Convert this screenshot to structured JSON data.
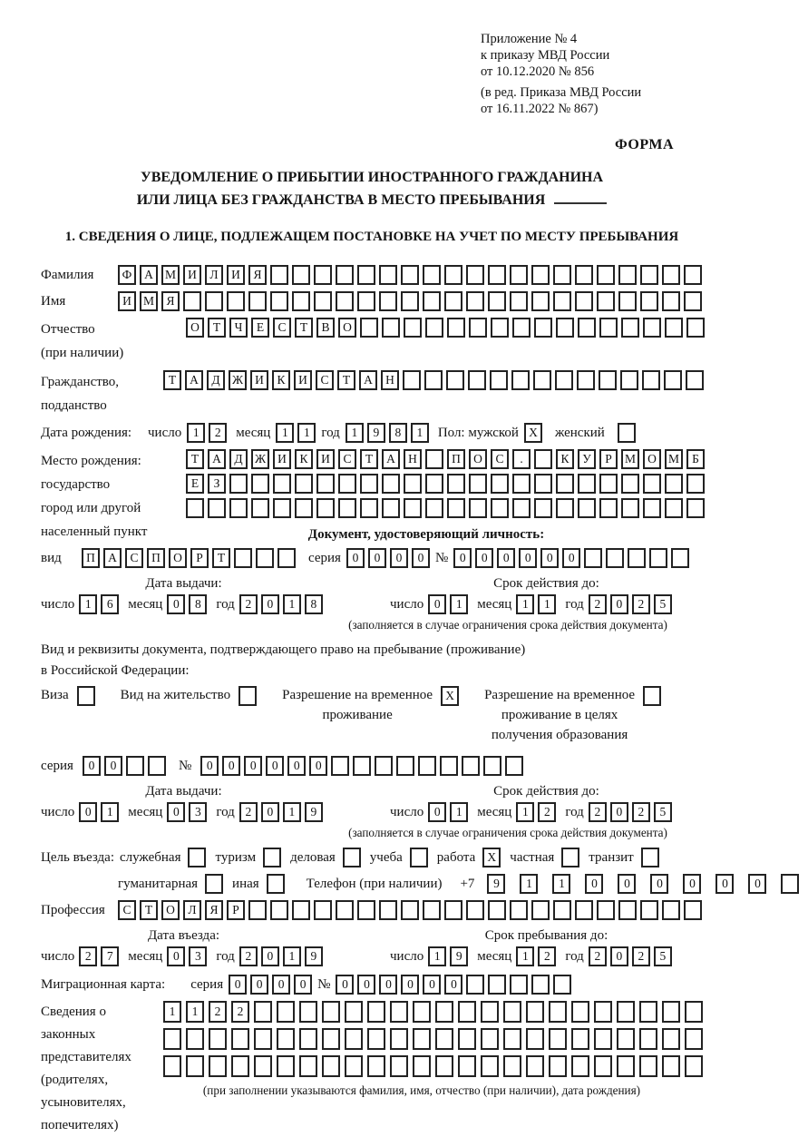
{
  "header": {
    "line1": "Приложение № 4",
    "line2": "к приказу МВД России",
    "line3": "от 10.12.2020 № 856",
    "line4": "(в ред. Приказа МВД России",
    "line5": "от 16.11.2022 № 867)",
    "form_label": "ФОРМА"
  },
  "title": {
    "line1": "УВЕДОМЛЕНИЕ О ПРИБЫТИИ ИНОСТРАННОГО ГРАЖДАНИНА",
    "line2": "ИЛИ ЛИЦА БЕЗ ГРАЖДАНСТВА В МЕСТО ПРЕБЫВАНИЯ",
    "section1": "1. СВЕДЕНИЯ О ЛИЦЕ, ПОДЛЕЖАЩЕМ ПОСТАНОВКЕ НА УЧЕТ ПО МЕСТУ ПРЕБЫВАНИЯ"
  },
  "date_labels": {
    "day": "число",
    "month": "месяц",
    "year": "год"
  },
  "person": {
    "surname": {
      "label": "Фамилия",
      "cells": {
        "v": "ФАМИЛИЯ",
        "n": 27
      }
    },
    "firstname": {
      "label": "Имя",
      "cells": {
        "v": "ИМЯ",
        "n": 27
      }
    },
    "patronymic": {
      "label1": "Отчество",
      "label2": "(при наличии)",
      "cells": {
        "v": "ОТЧЕСТВО",
        "n": 24
      }
    },
    "citizenship": {
      "label1": "Гражданство,",
      "label2": "подданство",
      "cells": {
        "v": "ТАДЖИКИСТАН",
        "n": 25
      }
    },
    "birth": {
      "label": "Дата рождения:",
      "day": {
        "v": "12",
        "n": 2
      },
      "month": {
        "v": "11",
        "n": 2
      },
      "year": {
        "v": "1981",
        "n": 4
      }
    },
    "sex": {
      "male_label": "Пол: мужской",
      "male_mark": "X",
      "female_label": "женский",
      "female_mark": ""
    },
    "birthplace": {
      "label1": "Место рождения:",
      "label2": "государство",
      "label3": "город или другой",
      "label4": "населенный пункт",
      "row1": {
        "v": "ТАДЖИКИСТАН ПОС. КУРМОМБ",
        "n": 24
      },
      "row2": {
        "v": "ЕЗ",
        "n": 24
      },
      "row3": {
        "v": "",
        "n": 24
      }
    }
  },
  "identity_doc": {
    "heading": "Документ, удостоверяющий личность:",
    "kind_label": "вид",
    "kind": {
      "v": "ПАСПОРТ",
      "n": 10
    },
    "series_label": "серия",
    "series": {
      "v": "0000",
      "n": 4
    },
    "number_label": "№",
    "number": {
      "v": "000000",
      "n": 11
    },
    "issue": {
      "heading": "Дата выдачи:",
      "day": {
        "v": "16",
        "n": 2
      },
      "month": {
        "v": "08",
        "n": 2
      },
      "year": {
        "v": "2018",
        "n": 4
      }
    },
    "valid": {
      "heading": "Срок действия до:",
      "day": {
        "v": "01",
        "n": 2
      },
      "month": {
        "v": "11",
        "n": 2
      },
      "year": {
        "v": "2025",
        "n": 4
      }
    },
    "note": "(заполняется в случае ограничения срока действия документа)"
  },
  "residence_doc": {
    "line1": "Вид и реквизиты документа, подтверждающего право на пребывание (проживание)",
    "line2": "в Российской Федерации:",
    "visa_label": "Виза",
    "visa_mark": "",
    "permit_label": "Вид на жительство",
    "permit_mark": "",
    "rvp_line1": "Разрешение на временное",
    "rvp_line2": "проживание",
    "rvp_mark": "X",
    "rvpo_line1": "Разрешение на временное",
    "rvpo_line2": "проживание в целях",
    "rvpo_line3": "получения образования",
    "rvpo_mark": "",
    "series_label": "серия",
    "series": {
      "v": "00",
      "n": 4
    },
    "number_label": "№",
    "number": {
      "v": "000000",
      "n": 15
    },
    "issue": {
      "heading": "Дата выдачи:",
      "day": {
        "v": "01",
        "n": 2
      },
      "month": {
        "v": "03",
        "n": 2
      },
      "year": {
        "v": "2019",
        "n": 4
      }
    },
    "valid": {
      "heading": "Срок действия до:",
      "day": {
        "v": "01",
        "n": 2
      },
      "month": {
        "v": "12",
        "n": 2
      },
      "year": {
        "v": "2025",
        "n": 4
      }
    },
    "note": "(заполняется в случае ограничения срока действия документа)"
  },
  "visit": {
    "purpose_label": "Цель въезда:",
    "opt_official": "служебная",
    "opt_official_mark": "",
    "opt_tourism": "туризм",
    "opt_tourism_mark": "",
    "opt_business": "деловая",
    "opt_business_mark": "",
    "opt_study": "учеба",
    "opt_study_mark": "",
    "opt_work": "работа",
    "opt_work_mark": "X",
    "opt_private": "частная",
    "opt_private_mark": "",
    "opt_transit": "транзит",
    "opt_transit_mark": "",
    "opt_humanitarian": "гуманитарная",
    "opt_humanitarian_mark": "",
    "opt_other": "иная",
    "opt_other_mark": "",
    "phone_label": "Телефон (при наличии)",
    "phone_prefix": "+7",
    "phone": {
      "v": "911000000",
      "n": 10
    },
    "profession_label": "Профессия",
    "profession": {
      "v": "СТОЛЯР",
      "n": 27
    },
    "entry": {
      "heading": "Дата въезда:",
      "day": {
        "v": "27",
        "n": 2
      },
      "month": {
        "v": "03",
        "n": 2
      },
      "year": {
        "v": "2019",
        "n": 4
      }
    },
    "stay": {
      "heading": "Срок пребывания до:",
      "day": {
        "v": "19",
        "n": 2
      },
      "month": {
        "v": "12",
        "n": 2
      },
      "year": {
        "v": "2025",
        "n": 4
      }
    },
    "migration_label": "Миграционная карта:",
    "migration_series_label": "серия",
    "migration_series": {
      "v": "0000",
      "n": 4
    },
    "migration_number_label": "№",
    "migration_number": {
      "v": "000000",
      "n": 11
    }
  },
  "legal": {
    "label1": "Сведения о",
    "label2": "законных",
    "label3": "представителях",
    "label4": "(родителях,",
    "label5": "усыновителях,",
    "label6": "попечителях)",
    "row1": {
      "v": "1122",
      "n": 24
    },
    "row2": {
      "v": "",
      "n": 24
    },
    "row3": {
      "v": "",
      "n": 24
    },
    "note": "(при заполнении указываются фамилия, имя, отчество (при наличии), дата рождения)"
  }
}
